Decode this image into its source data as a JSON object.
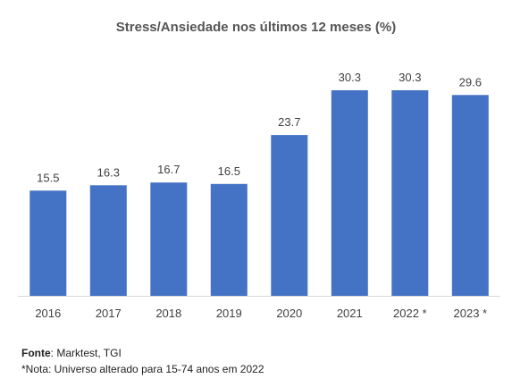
{
  "chart_data": {
    "type": "bar",
    "title": "Stress/Ansiedade nos últimos 12 meses (%)",
    "categories": [
      "2016",
      "2017",
      "2018",
      "2019",
      "2020",
      "2021",
      "2022 *",
      "2023 *"
    ],
    "values": [
      15.5,
      16.3,
      16.7,
      16.5,
      23.7,
      30.3,
      30.3,
      29.6
    ],
    "data_labels": [
      "15.5",
      "16.3",
      "16.7",
      "16.5",
      "23.7",
      "30.3",
      "30.3",
      "29.6"
    ],
    "ylim": [
      0,
      30.3
    ],
    "grid": false,
    "legend": "none",
    "bar_color": "#4472C4",
    "axis_color": "#D9D9D9"
  },
  "footer": {
    "source_label": "Fonte",
    "source_text": ": Marktest, TGI",
    "note": "*Nota: Universo alterado para 15-74 anos em 2022"
  }
}
